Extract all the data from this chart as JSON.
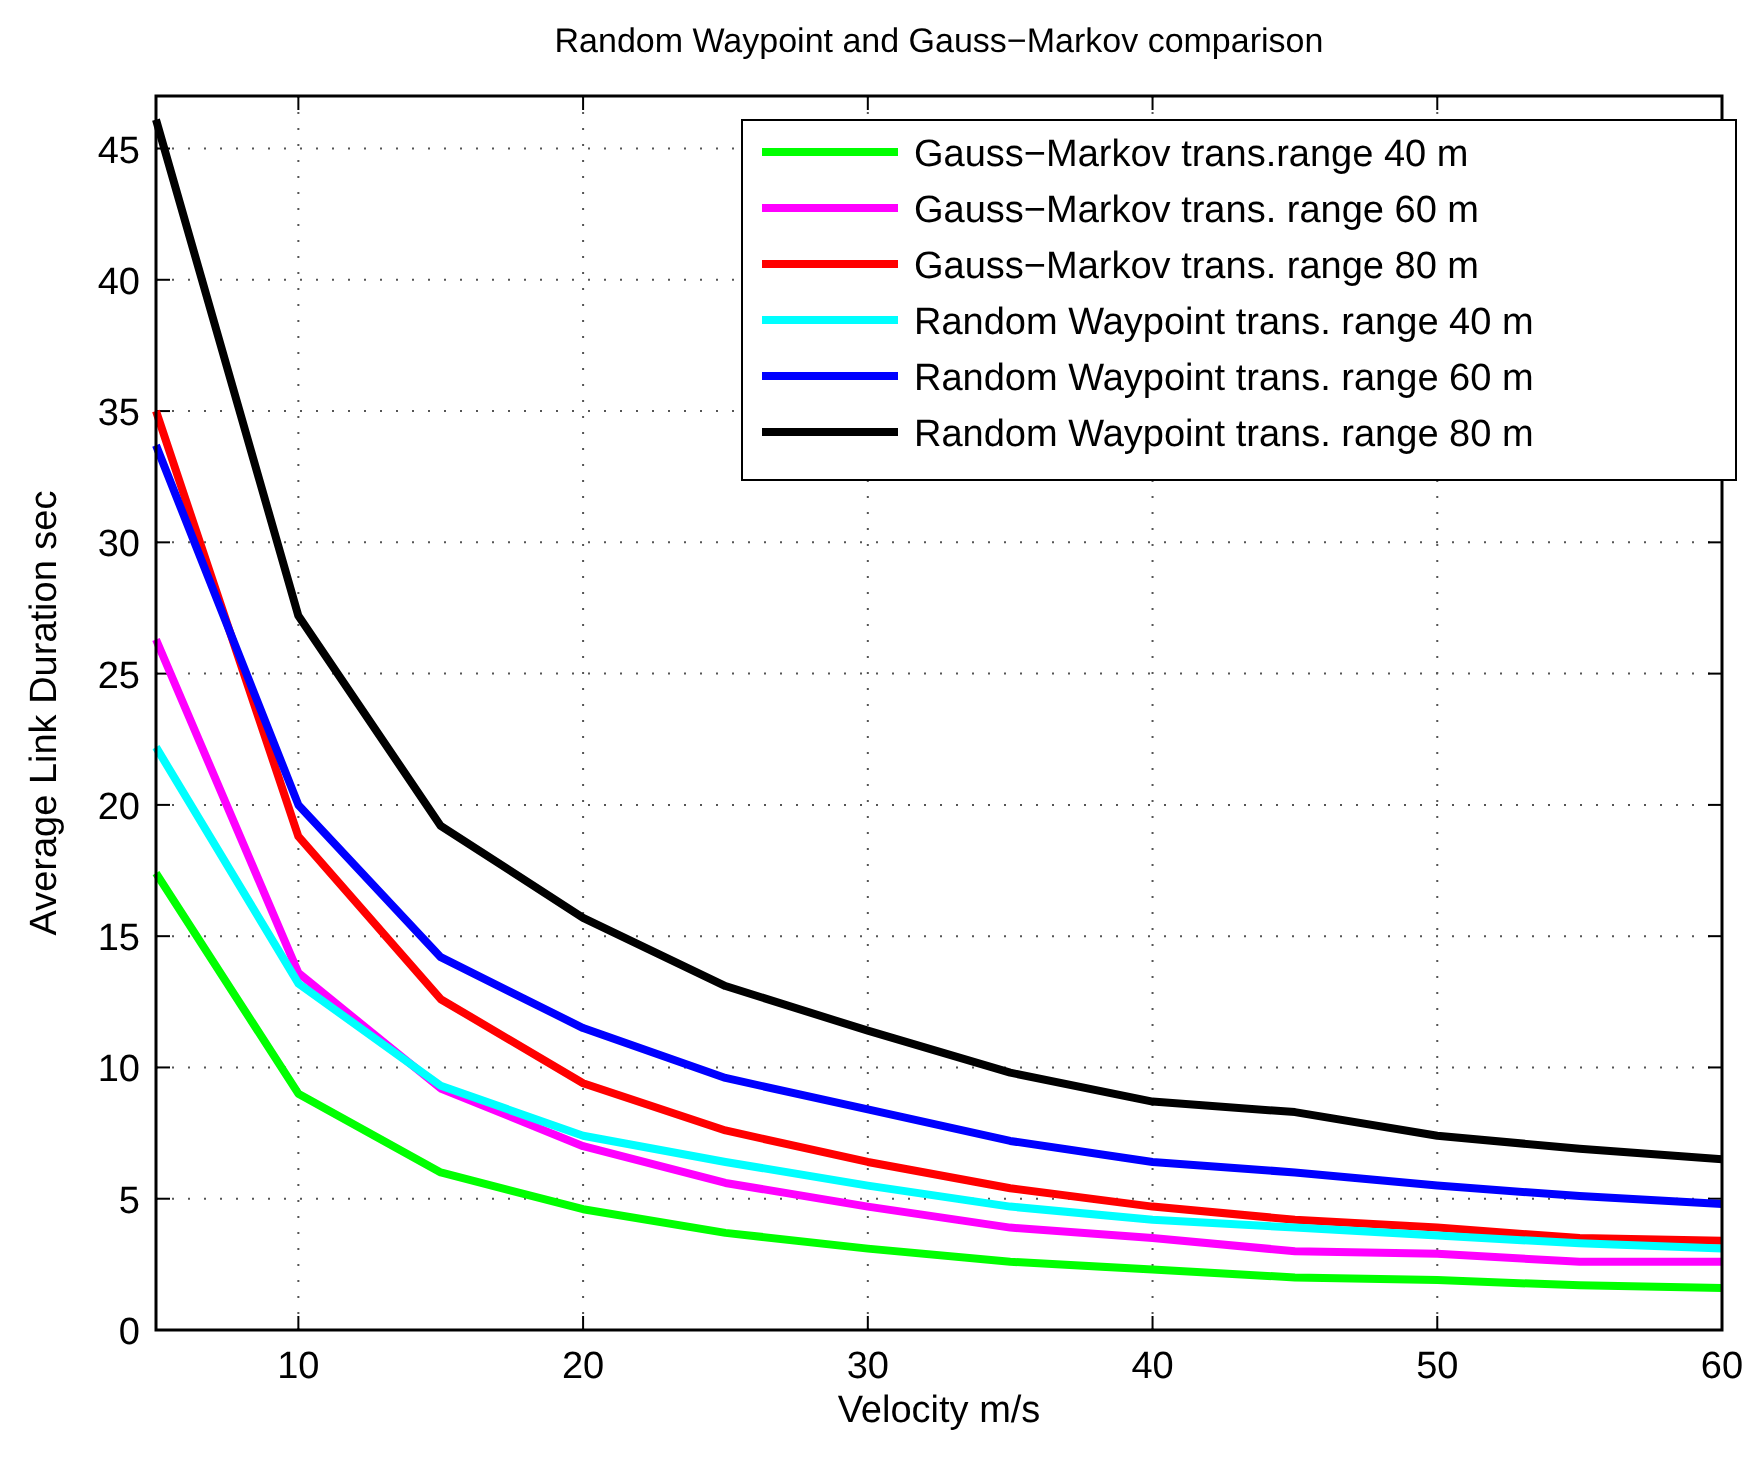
{
  "chart_data": {
    "type": "line",
    "title": "Random Waypoint and Gauss−Markov comparison",
    "xlabel": "Velocity m/s",
    "ylabel": "Average Link Duration sec",
    "x": [
      5,
      10,
      15,
      20,
      25,
      30,
      35,
      40,
      45,
      50,
      55,
      60
    ],
    "series": [
      {
        "name": "Gauss−Markov trans.range 40 m",
        "color": "#00ff00",
        "values": [
          17.4,
          9.0,
          6.0,
          4.6,
          3.7,
          3.1,
          2.6,
          2.3,
          2.0,
          1.9,
          1.7,
          1.6
        ]
      },
      {
        "name": "Gauss−Markov trans. range 60 m",
        "color": "#ff00ff",
        "values": [
          26.3,
          13.6,
          9.2,
          7.0,
          5.6,
          4.7,
          3.9,
          3.5,
          3.0,
          2.9,
          2.6,
          2.6
        ]
      },
      {
        "name": "Gauss−Markov trans. range 80 m",
        "color": "#ff0000",
        "values": [
          35.0,
          18.8,
          12.6,
          9.4,
          7.6,
          6.4,
          5.4,
          4.7,
          4.2,
          3.9,
          3.5,
          3.4
        ]
      },
      {
        "name": "Random Waypoint trans. range 40 m",
        "color": "#00ffff",
        "values": [
          22.2,
          13.2,
          9.3,
          7.4,
          6.4,
          5.5,
          4.7,
          4.2,
          3.9,
          3.6,
          3.3,
          3.1
        ]
      },
      {
        "name": "Random Waypoint trans. range 60 m",
        "color": "#0000ff",
        "values": [
          33.7,
          20.0,
          14.2,
          11.5,
          9.6,
          8.4,
          7.2,
          6.4,
          6.0,
          5.5,
          5.1,
          4.8
        ]
      },
      {
        "name": "Random Waypoint trans. range 80 m",
        "color": "#000000",
        "values": [
          46.1,
          27.2,
          19.2,
          15.7,
          13.1,
          11.4,
          9.8,
          8.7,
          8.3,
          7.4,
          6.9,
          6.5
        ]
      }
    ],
    "xlim": [
      5,
      60
    ],
    "xticks": [
      10,
      20,
      30,
      40,
      50,
      60
    ],
    "ylim": [
      0,
      47
    ],
    "yticks": [
      0,
      5,
      10,
      15,
      20,
      25,
      30,
      35,
      40,
      45
    ],
    "grid": true,
    "legend": "top right",
    "line_style": "solid",
    "marker": "none"
  }
}
